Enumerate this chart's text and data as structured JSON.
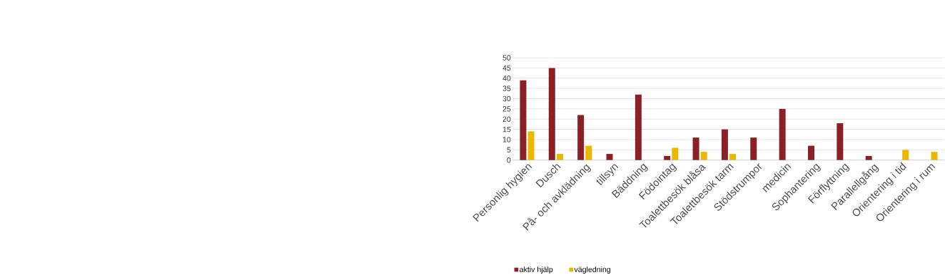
{
  "chart_data": {
    "type": "bar",
    "categories": [
      "Personlig hygien",
      "Dusch",
      "På- och avklädning",
      "tillsyn",
      "Bäddning",
      "Födointag",
      "Toalettbesök blåsa",
      "Toalettbesök tarm",
      "Stödstrumpor",
      "medicin",
      "Sophantering",
      "Förflyttning",
      "Parallellgång",
      "Orientering i tid",
      "Orientering i rum"
    ],
    "series": [
      {
        "name": "aktiv hjälp",
        "color": "#8b2126",
        "values": [
          39,
          45,
          22,
          3,
          32,
          2,
          11,
          15,
          11,
          25,
          7,
          18,
          2,
          null,
          null
        ]
      },
      {
        "name": "vägledning",
        "color": "#ebb700",
        "values": [
          14,
          3,
          7,
          null,
          null,
          6,
          4,
          3,
          null,
          null,
          null,
          null,
          null,
          5,
          4
        ]
      }
    ],
    "ylim": [
      0,
      50
    ],
    "yticks": [
      0,
      5,
      10,
      15,
      20,
      25,
      30,
      35,
      40,
      45,
      50
    ],
    "grid": "y",
    "legend": "bottom"
  }
}
